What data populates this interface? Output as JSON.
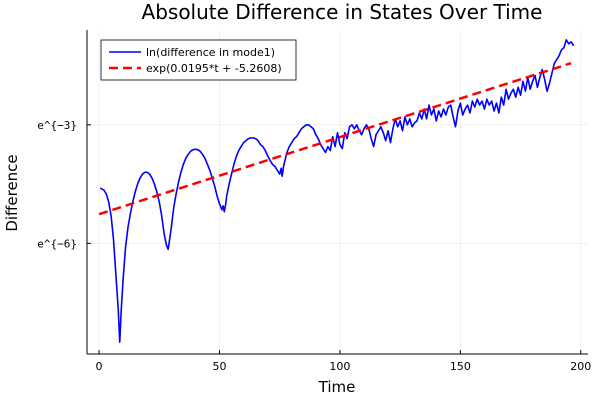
{
  "chart_data": {
    "type": "line",
    "title": "Absolute Difference in States Over Time",
    "xlabel": "Time",
    "ylabel": "Difference",
    "xlim": [
      -5,
      203
    ],
    "ylim": [
      -8.8,
      -0.6
    ],
    "x_ticks": [
      0,
      50,
      100,
      150,
      200
    ],
    "y_ticks": [
      {
        "value": -3,
        "label": "e^{−3}"
      },
      {
        "value": -6,
        "label": "e^{−6}"
      }
    ],
    "grid": true,
    "legend_position": "top-left",
    "series": [
      {
        "name": "ln(difference in mode1)",
        "color": "#0000ff",
        "style": "solid",
        "points": [
          [
            0.5,
            -4.6
          ],
          [
            2,
            -4.65
          ],
          [
            3,
            -4.75
          ],
          [
            4,
            -4.95
          ],
          [
            5,
            -5.3
          ],
          [
            6,
            -5.9
          ],
          [
            7,
            -6.8
          ],
          [
            8,
            -7.7
          ],
          [
            8.6,
            -8.5
          ],
          [
            9.2,
            -7.7
          ],
          [
            10,
            -6.9
          ],
          [
            11,
            -6.1
          ],
          [
            12,
            -5.6
          ],
          [
            13,
            -5.25
          ],
          [
            14,
            -4.95
          ],
          [
            15,
            -4.7
          ],
          [
            16,
            -4.5
          ],
          [
            17,
            -4.35
          ],
          [
            18,
            -4.25
          ],
          [
            19,
            -4.2
          ],
          [
            20,
            -4.2
          ],
          [
            21,
            -4.25
          ],
          [
            22,
            -4.35
          ],
          [
            23,
            -4.5
          ],
          [
            24,
            -4.7
          ],
          [
            25,
            -4.95
          ],
          [
            26,
            -5.3
          ],
          [
            27,
            -5.75
          ],
          [
            28,
            -6.05
          ],
          [
            28.7,
            -6.15
          ],
          [
            29.3,
            -5.9
          ],
          [
            30,
            -5.6
          ],
          [
            31,
            -5.1
          ],
          [
            32,
            -4.75
          ],
          [
            33,
            -4.45
          ],
          [
            34,
            -4.2
          ],
          [
            35,
            -4.0
          ],
          [
            36,
            -3.85
          ],
          [
            37,
            -3.75
          ],
          [
            38,
            -3.67
          ],
          [
            39,
            -3.63
          ],
          [
            40,
            -3.62
          ],
          [
            41,
            -3.63
          ],
          [
            42,
            -3.67
          ],
          [
            43,
            -3.75
          ],
          [
            44,
            -3.85
          ],
          [
            45,
            -4.0
          ],
          [
            46,
            -4.15
          ],
          [
            47,
            -4.35
          ],
          [
            48,
            -4.55
          ],
          [
            49,
            -4.8
          ],
          [
            50,
            -5.0
          ],
          [
            51,
            -5.15
          ],
          [
            51.5,
            -5.05
          ],
          [
            52,
            -5.2
          ],
          [
            52.6,
            -5.0
          ],
          [
            53,
            -4.8
          ],
          [
            54,
            -4.5
          ],
          [
            55,
            -4.25
          ],
          [
            56,
            -4.0
          ],
          [
            57,
            -3.8
          ],
          [
            58,
            -3.65
          ],
          [
            59,
            -3.55
          ],
          [
            60,
            -3.45
          ],
          [
            61,
            -3.4
          ],
          [
            62,
            -3.35
          ],
          [
            63,
            -3.33
          ],
          [
            64,
            -3.33
          ],
          [
            65,
            -3.35
          ],
          [
            66,
            -3.4
          ],
          [
            67,
            -3.5
          ],
          [
            68,
            -3.55
          ],
          [
            69,
            -3.65
          ],
          [
            70,
            -3.78
          ],
          [
            71,
            -3.9
          ],
          [
            72,
            -4.0
          ],
          [
            73,
            -4.05
          ],
          [
            74,
            -4.15
          ],
          [
            75,
            -4.25
          ],
          [
            75.6,
            -4.1
          ],
          [
            76,
            -4.3
          ],
          [
            76.6,
            -4.05
          ],
          [
            77,
            -3.95
          ],
          [
            78,
            -3.7
          ],
          [
            79,
            -3.55
          ],
          [
            80,
            -3.45
          ],
          [
            81,
            -3.35
          ],
          [
            82,
            -3.3
          ],
          [
            83,
            -3.2
          ],
          [
            84,
            -3.1
          ],
          [
            85,
            -3.05
          ],
          [
            86,
            -3.0
          ],
          [
            87,
            -3.0
          ],
          [
            88,
            -3.05
          ],
          [
            89,
            -3.1
          ],
          [
            90,
            -3.25
          ],
          [
            91,
            -3.35
          ],
          [
            92,
            -3.5
          ],
          [
            93,
            -3.6
          ],
          [
            94,
            -3.7
          ],
          [
            95,
            -3.55
          ],
          [
            96,
            -3.65
          ],
          [
            97,
            -3.3
          ],
          [
            98,
            -3.55
          ],
          [
            99,
            -3.2
          ],
          [
            100,
            -3.5
          ],
          [
            101,
            -3.6
          ],
          [
            102,
            -3.2
          ],
          [
            103,
            -3.35
          ],
          [
            104,
            -3.05
          ],
          [
            105,
            -3.0
          ],
          [
            106,
            -3.1
          ],
          [
            107,
            -3.0
          ],
          [
            108,
            -3.15
          ],
          [
            109,
            -3.25
          ],
          [
            110,
            -3.1
          ],
          [
            111,
            -3.0
          ],
          [
            112,
            -3.1
          ],
          [
            113,
            -3.35
          ],
          [
            114,
            -3.55
          ],
          [
            115,
            -3.25
          ],
          [
            116,
            -3.15
          ],
          [
            117,
            -3.05
          ],
          [
            118,
            -3.2
          ],
          [
            119,
            -3.4
          ],
          [
            120,
            -3.15
          ],
          [
            121,
            -3.45
          ],
          [
            122,
            -3.1
          ],
          [
            123,
            -2.85
          ],
          [
            124,
            -3.05
          ],
          [
            125,
            -2.9
          ],
          [
            126,
            -3.15
          ],
          [
            127,
            -2.8
          ],
          [
            128,
            -3.0
          ],
          [
            129,
            -2.85
          ],
          [
            130,
            -3.05
          ],
          [
            131,
            -2.95
          ],
          [
            132,
            -2.9
          ],
          [
            133,
            -2.7
          ],
          [
            134,
            -2.85
          ],
          [
            135,
            -2.6
          ],
          [
            136,
            -2.85
          ],
          [
            137,
            -2.5
          ],
          [
            138,
            -2.75
          ],
          [
            139,
            -2.6
          ],
          [
            140,
            -2.9
          ],
          [
            141,
            -2.65
          ],
          [
            142,
            -2.8
          ],
          [
            143,
            -2.6
          ],
          [
            144,
            -2.75
          ],
          [
            145,
            -2.55
          ],
          [
            146,
            -2.5
          ],
          [
            147,
            -2.8
          ],
          [
            148,
            -3.05
          ],
          [
            149,
            -2.65
          ],
          [
            150,
            -2.45
          ],
          [
            151,
            -2.75
          ],
          [
            152,
            -2.6
          ],
          [
            153,
            -2.5
          ],
          [
            154,
            -2.7
          ],
          [
            155,
            -2.4
          ],
          [
            156,
            -2.55
          ],
          [
            157,
            -2.35
          ],
          [
            158,
            -2.5
          ],
          [
            159,
            -2.4
          ],
          [
            160,
            -2.6
          ],
          [
            161,
            -2.35
          ],
          [
            162,
            -2.5
          ],
          [
            163,
            -2.4
          ],
          [
            164,
            -2.65
          ],
          [
            165,
            -2.45
          ],
          [
            166,
            -2.7
          ],
          [
            167,
            -2.3
          ],
          [
            168,
            -2.5
          ],
          [
            169,
            -2.1
          ],
          [
            170,
            -2.35
          ],
          [
            171,
            -2.2
          ],
          [
            172,
            -2.1
          ],
          [
            173,
            -2.3
          ],
          [
            174,
            -2.05
          ],
          [
            175,
            -2.25
          ],
          [
            176,
            -1.9
          ],
          [
            177,
            -2.15
          ],
          [
            178,
            -1.8
          ],
          [
            179,
            -2.1
          ],
          [
            180,
            -1.9
          ],
          [
            181,
            -1.75
          ],
          [
            182,
            -2.05
          ],
          [
            183,
            -1.8
          ],
          [
            184,
            -1.6
          ],
          [
            185,
            -1.85
          ],
          [
            186,
            -2.15
          ],
          [
            187,
            -1.95
          ],
          [
            188,
            -1.7
          ],
          [
            189,
            -1.45
          ],
          [
            190,
            -1.35
          ],
          [
            191,
            -1.25
          ],
          [
            192,
            -1.1
          ],
          [
            193,
            -1.05
          ],
          [
            194,
            -0.85
          ],
          [
            195,
            -0.95
          ],
          [
            196,
            -0.9
          ],
          [
            197,
            -1.0
          ]
        ]
      },
      {
        "name": "exp(0.0195*t + -5.2608)",
        "color": "#ff0000",
        "style": "dashed",
        "slope": 0.0195,
        "intercept": -5.2608,
        "x_range": [
          0,
          196
        ]
      }
    ]
  }
}
